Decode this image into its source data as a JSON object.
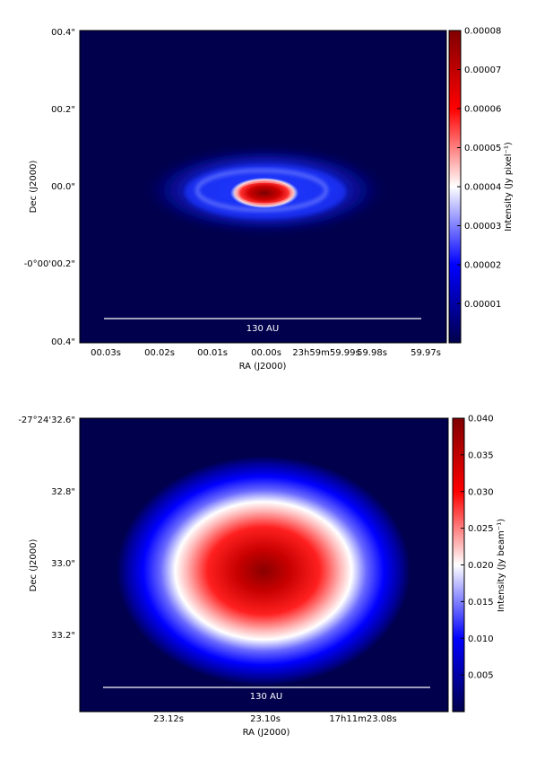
{
  "chart_data": [
    {
      "type": "heatmap",
      "panel": "top",
      "description_of_values": "simulated model image of an inclined disk",
      "xlabel": "RA (J2000)",
      "ylabel": "Dec (J2000)",
      "x_ticks": [
        "00.03s",
        "00.02s",
        "00.01s",
        "00.00s",
        "23h59m59.99s",
        "59.98s",
        "59.97s"
      ],
      "y_ticks": [
        "00.4\"",
        "00.2\"",
        "00.0\"",
        "-0°00'00.2\"",
        "00.4\""
      ],
      "scalebar_label": "130 AU",
      "colorbar": {
        "label": "Intensity (Jy pixel⁻¹)",
        "range": [
          0,
          8e-05
        ],
        "ticks": [
          "0.00001",
          "0.00002",
          "0.00003",
          "0.00004",
          "0.00005",
          "0.00006",
          "0.00007",
          "0.00008"
        ],
        "tick_values": [
          1e-05,
          2e-05,
          3e-05,
          4e-05,
          5e-05,
          6e-05,
          7e-05,
          8e-05
        ],
        "colormap": [
          "#00004c",
          "#0000ff",
          "#ffffff",
          "#ff0000",
          "#800000"
        ]
      },
      "peak_value_approx": 8e-05
    },
    {
      "type": "heatmap",
      "panel": "bottom",
      "xlabel": "RA (J2000)",
      "ylabel": "Dec (J2000)",
      "x_ticks": [
        "23.12s",
        "23.10s",
        "17h11m23.08s"
      ],
      "y_ticks": [
        "-27°24'32.6\"",
        "32.8\"",
        "33.0\"",
        "33.2\""
      ],
      "scalebar_label": "130 AU",
      "colorbar": {
        "label": "Intensity (Jy beam⁻¹)",
        "range": [
          0,
          0.04
        ],
        "ticks": [
          "0.005",
          "0.010",
          "0.015",
          "0.020",
          "0.025",
          "0.030",
          "0.035",
          "0.040"
        ],
        "tick_values": [
          0.005,
          0.01,
          0.015,
          0.02,
          0.025,
          0.03,
          0.035,
          0.04
        ],
        "colormap": [
          "#00004c",
          "#0000ff",
          "#ffffff",
          "#ff0000",
          "#800000"
        ]
      },
      "peak_value_approx": 0.04
    }
  ]
}
